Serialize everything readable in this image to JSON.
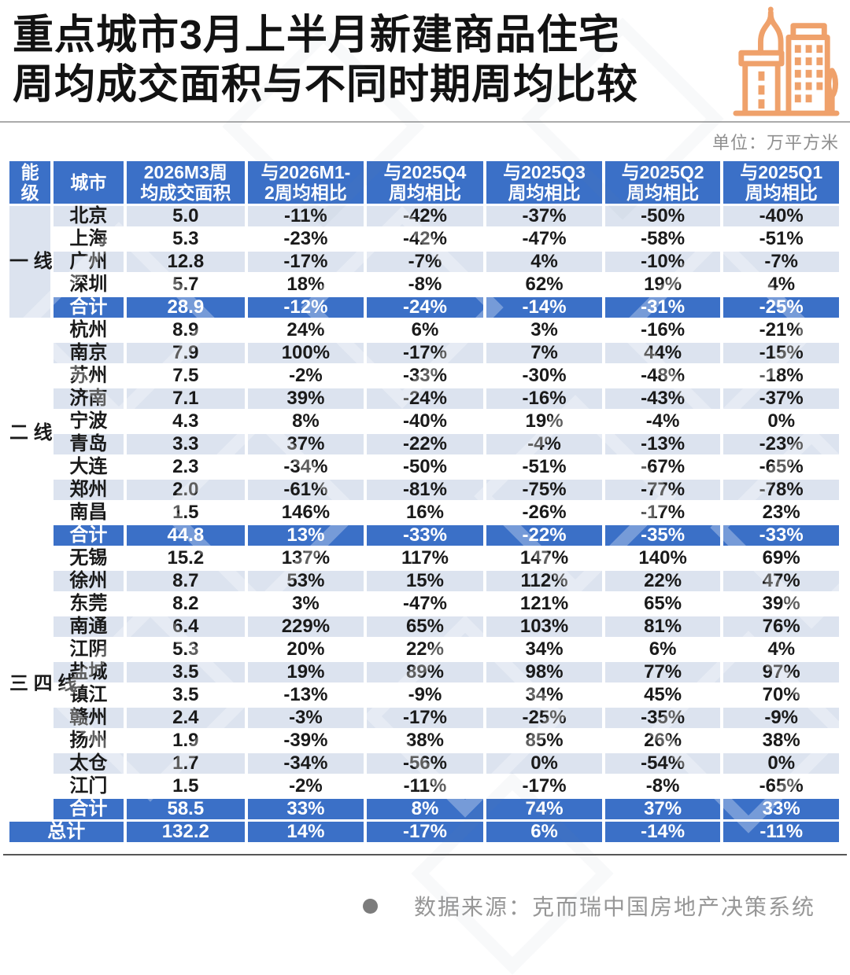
{
  "page": {
    "title_line1": "重点城市3月上半月新建商品住宅",
    "title_line2": "周均成交面积与不同时期周均比较",
    "unit_label": "单位：万平方米",
    "footer_source": "数据来源：克而瑞中国房地产决策系统"
  },
  "icons": {
    "building_icon": "city-buildings-icon",
    "bullet_icon": "dot-bullet-icon"
  },
  "colors": {
    "header_blue": "#3B70C7",
    "row_light": "#DCE3EF",
    "row_white": "#FFFFFF",
    "accent_orange": "#EFA16B",
    "text_dark": "#1A1A1A",
    "muted_gray": "#8F8F8F"
  },
  "chart_data": {
    "type": "table",
    "title": "重点城市3月上半月新建商品住宅周均成交面积与不同时期周均比较",
    "unit": "万平方米",
    "columns": [
      "能级",
      "城市",
      "2026M3周均成交面积",
      "与2026M1-2周均相比",
      "与2025Q4周均相比",
      "与2025Q3周均相比",
      "与2025Q2周均相比",
      "与2025Q1周均相比"
    ],
    "header_display": [
      "能\n级",
      "城市",
      "2026M3周\n均成交面积",
      "与2026M1-\n2周均相比",
      "与2025Q4\n周均相比",
      "与2025Q3\n周均相比",
      "与2025Q2\n周均相比",
      "与2025Q1\n周均相比"
    ],
    "groups": [
      {
        "tier": "一线",
        "tier_shaded": true,
        "rows": [
          {
            "city": "北京",
            "values": [
              "5.0",
              "-11%",
              "-42%",
              "-37%",
              "-50%",
              "-40%"
            ]
          },
          {
            "city": "上海",
            "values": [
              "5.3",
              "-23%",
              "-42%",
              "-47%",
              "-58%",
              "-51%"
            ]
          },
          {
            "city": "广州",
            "values": [
              "12.8",
              "-17%",
              "-7%",
              "4%",
              "-10%",
              "-7%"
            ]
          },
          {
            "city": "深圳",
            "values": [
              "5.7",
              "18%",
              "-8%",
              "62%",
              "19%",
              "4%"
            ]
          }
        ],
        "total": {
          "label": "合计",
          "values": [
            "28.9",
            "-12%",
            "-24%",
            "-14%",
            "-31%",
            "-25%"
          ]
        }
      },
      {
        "tier": "二线",
        "tier_shaded": false,
        "rows": [
          {
            "city": "杭州",
            "values": [
              "8.9",
              "24%",
              "6%",
              "3%",
              "-16%",
              "-21%"
            ]
          },
          {
            "city": "南京",
            "values": [
              "7.9",
              "100%",
              "-17%",
              "7%",
              "44%",
              "-15%"
            ]
          },
          {
            "city": "苏州",
            "values": [
              "7.5",
              "-2%",
              "-33%",
              "-30%",
              "-48%",
              "-18%"
            ]
          },
          {
            "city": "济南",
            "values": [
              "7.1",
              "39%",
              "-24%",
              "-16%",
              "-43%",
              "-37%"
            ]
          },
          {
            "city": "宁波",
            "values": [
              "4.3",
              "8%",
              "-40%",
              "19%",
              "-4%",
              "0%"
            ]
          },
          {
            "city": "青岛",
            "values": [
              "3.3",
              "37%",
              "-22%",
              "-4%",
              "-13%",
              "-23%"
            ]
          },
          {
            "city": "大连",
            "values": [
              "2.3",
              "-34%",
              "-50%",
              "-51%",
              "-67%",
              "-65%"
            ]
          },
          {
            "city": "郑州",
            "values": [
              "2.0",
              "-61%",
              "-81%",
              "-75%",
              "-77%",
              "-78%"
            ]
          },
          {
            "city": "南昌",
            "values": [
              "1.5",
              "146%",
              "16%",
              "-26%",
              "-17%",
              "23%"
            ]
          }
        ],
        "total": {
          "label": "合计",
          "values": [
            "44.8",
            "13%",
            "-33%",
            "-22%",
            "-35%",
            "-33%"
          ]
        }
      },
      {
        "tier": "三四线",
        "tier_shaded": false,
        "rows": [
          {
            "city": "无锡",
            "values": [
              "15.2",
              "137%",
              "117%",
              "147%",
              "140%",
              "69%"
            ]
          },
          {
            "city": "徐州",
            "values": [
              "8.7",
              "53%",
              "15%",
              "112%",
              "22%",
              "47%"
            ]
          },
          {
            "city": "东莞",
            "values": [
              "8.2",
              "3%",
              "-47%",
              "121%",
              "65%",
              "39%"
            ]
          },
          {
            "city": "南通",
            "values": [
              "6.4",
              "229%",
              "65%",
              "103%",
              "81%",
              "76%"
            ]
          },
          {
            "city": "江阴",
            "values": [
              "5.3",
              "20%",
              "22%",
              "34%",
              "6%",
              "4%"
            ]
          },
          {
            "city": "盐城",
            "values": [
              "3.5",
              "19%",
              "89%",
              "98%",
              "77%",
              "97%"
            ]
          },
          {
            "city": "镇江",
            "values": [
              "3.5",
              "-13%",
              "-9%",
              "34%",
              "45%",
              "70%"
            ]
          },
          {
            "city": "赣州",
            "values": [
              "2.4",
              "-3%",
              "-17%",
              "-25%",
              "-35%",
              "-9%"
            ]
          },
          {
            "city": "扬州",
            "values": [
              "1.9",
              "-39%",
              "38%",
              "85%",
              "26%",
              "38%"
            ]
          },
          {
            "city": "太仓",
            "values": [
              "1.7",
              "-34%",
              "-56%",
              "0%",
              "-54%",
              "0%"
            ]
          },
          {
            "city": "江门",
            "values": [
              "1.5",
              "-2%",
              "-11%",
              "-17%",
              "-8%",
              "-65%"
            ]
          }
        ],
        "total": {
          "label": "合计",
          "values": [
            "58.5",
            "33%",
            "8%",
            "74%",
            "37%",
            "33%"
          ]
        }
      }
    ],
    "grand_total": {
      "label": "总计",
      "values": [
        "132.2",
        "14%",
        "-17%",
        "6%",
        "-14%",
        "-11%"
      ]
    }
  }
}
